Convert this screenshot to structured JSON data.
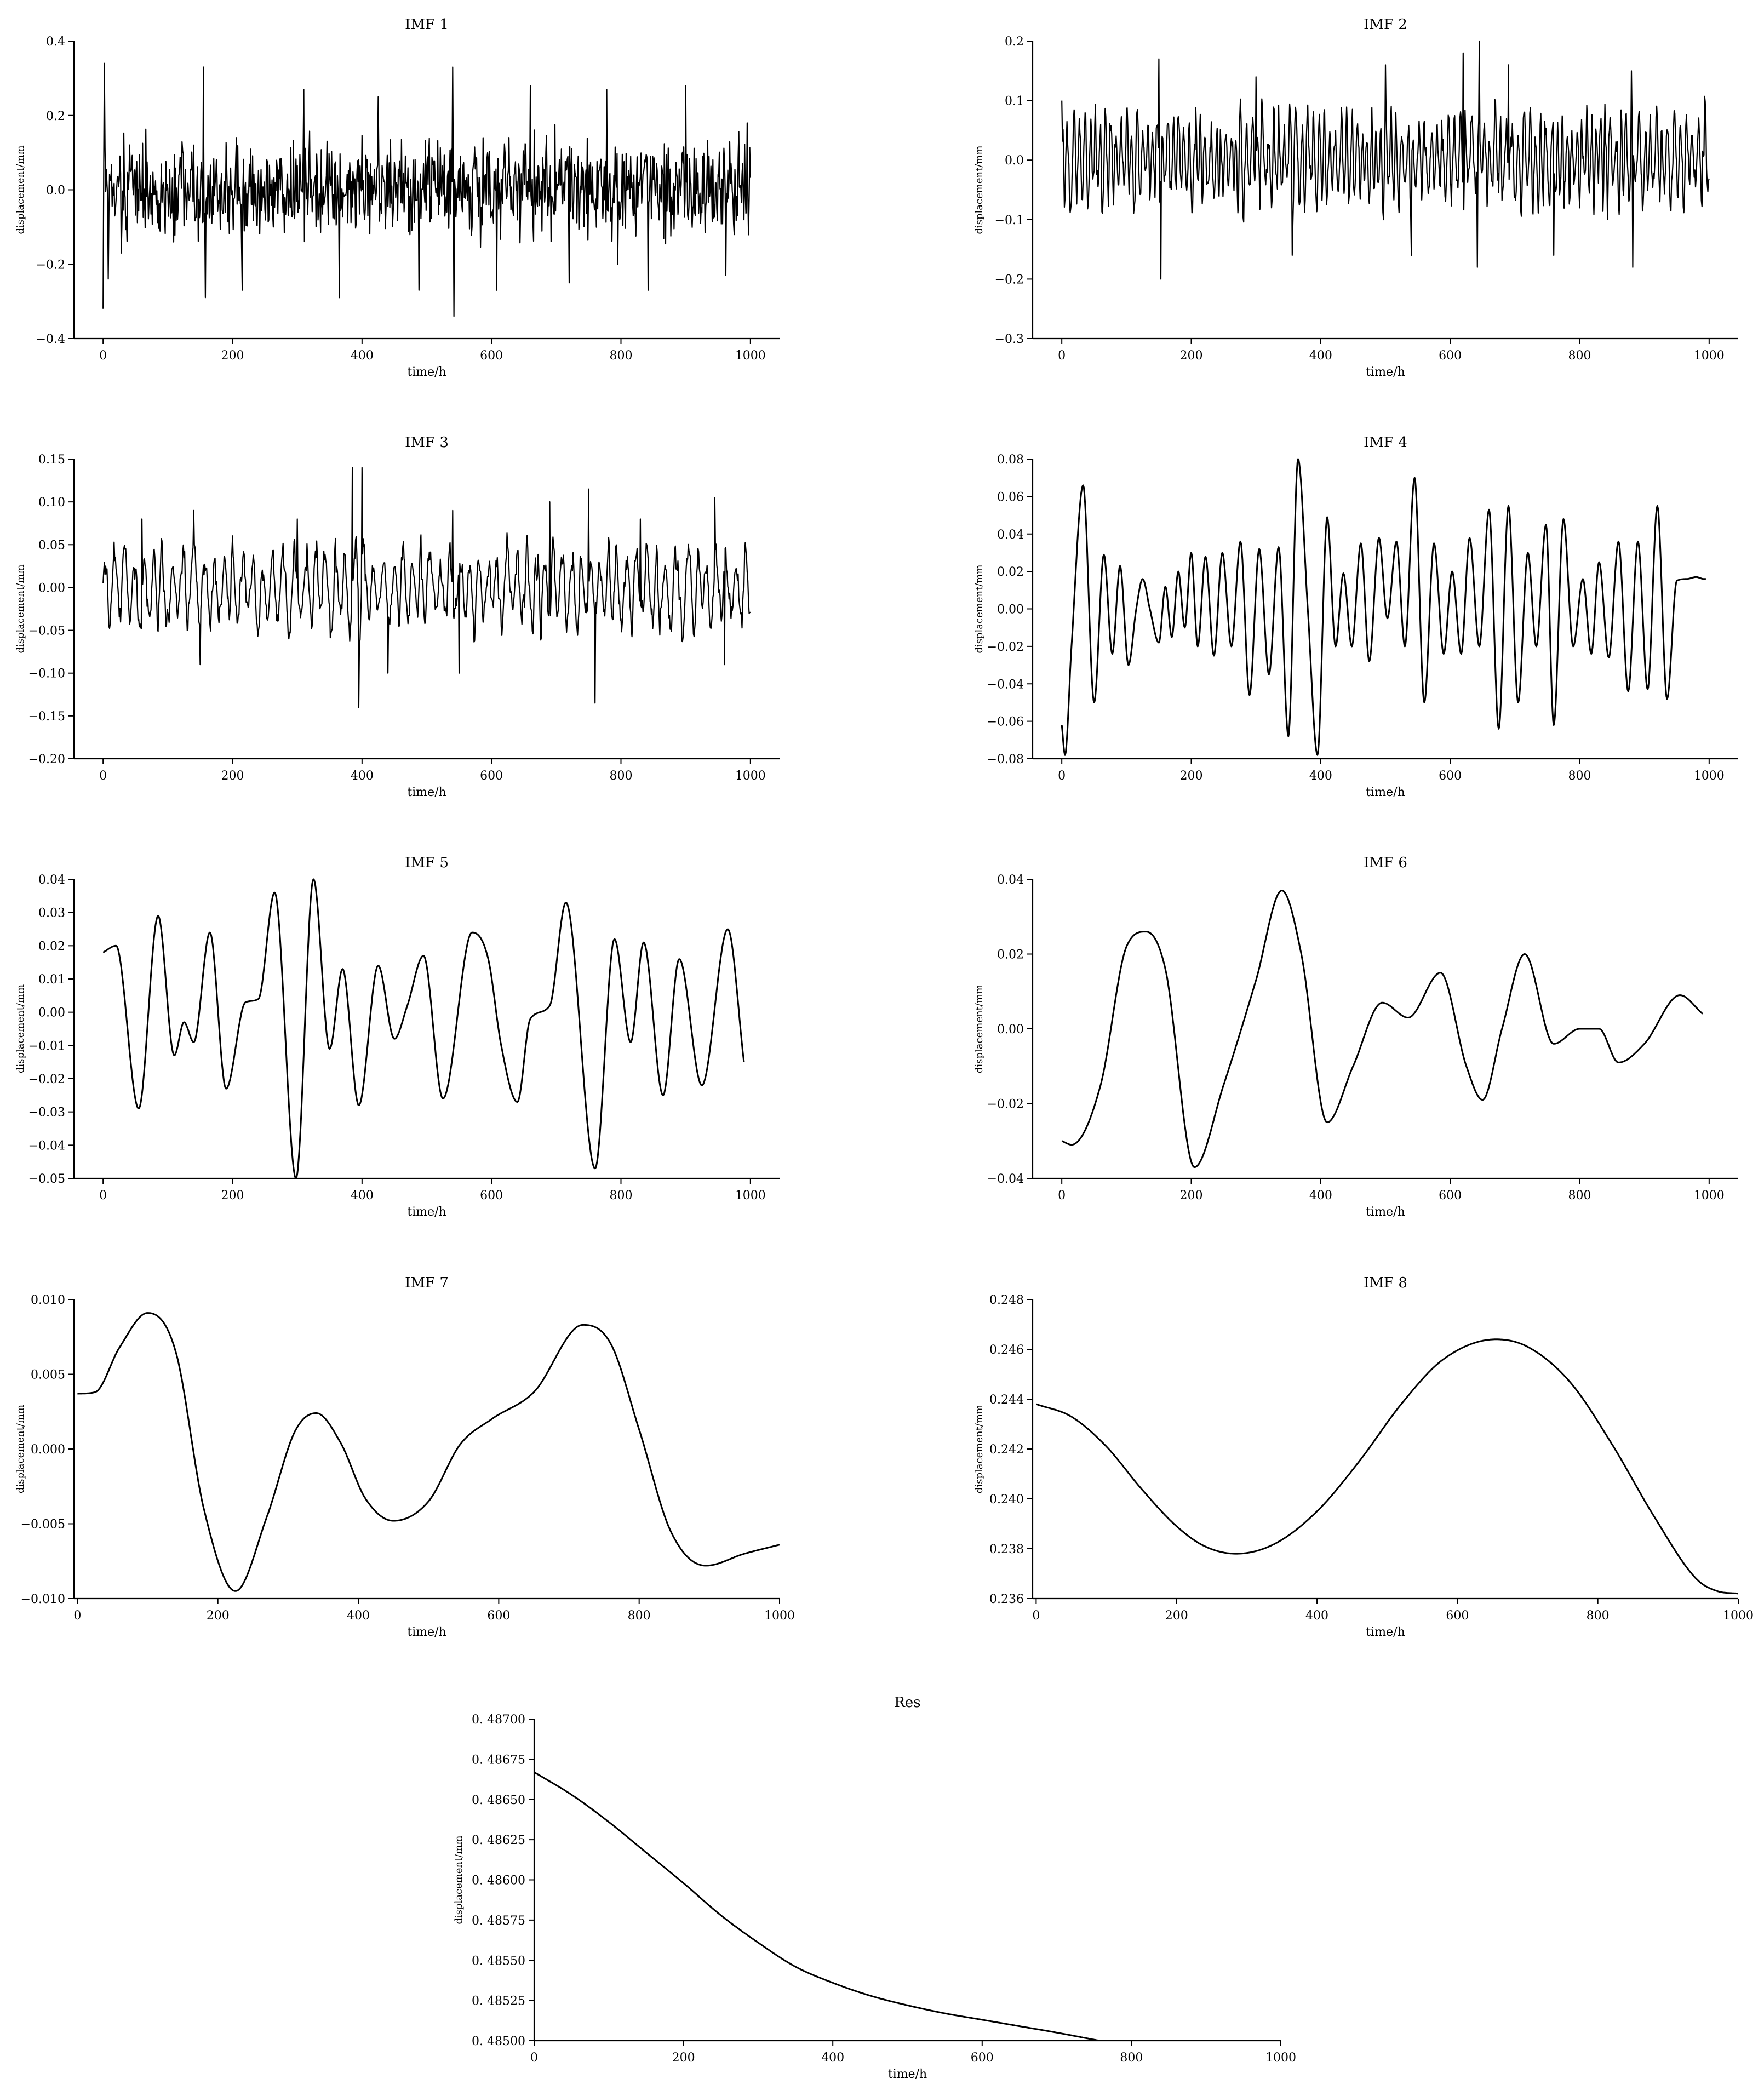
{
  "chart_data": [
    {
      "type": "line",
      "title": "IMF 1",
      "xlabel": "time/h",
      "ylabel": "displacement/mm",
      "xlim": [
        -45,
        1045
      ],
      "ylim": [
        -0.4,
        0.4
      ],
      "xticks": [
        0,
        200,
        400,
        600,
        800,
        1000
      ],
      "yticks": [
        -0.4,
        -0.2,
        0.0,
        0.2,
        0.4
      ],
      "ytick_labels": [
        "−0.4",
        "−0.2",
        "0.0",
        "0.2",
        "0.4"
      ],
      "series": [
        {
          "generator": "noise",
          "x": [
            0,
            1000
          ],
          "amplitude": 0.1,
          "peaks": [
            [
              0,
              -0.32
            ],
            [
              2,
              0.34
            ],
            [
              8,
              -0.24
            ],
            [
              28,
              -0.17
            ],
            [
              155,
              0.33
            ],
            [
              158,
              -0.29
            ],
            [
              215,
              -0.27
            ],
            [
              310,
              0.27
            ],
            [
              365,
              -0.29
            ],
            [
              425,
              0.25
            ],
            [
              488,
              -0.27
            ],
            [
              540,
              0.33
            ],
            [
              542,
              -0.34
            ],
            [
              608,
              -0.27
            ],
            [
              660,
              0.28
            ],
            [
              720,
              -0.25
            ],
            [
              778,
              0.27
            ],
            [
              795,
              -0.2
            ],
            [
              842,
              -0.27
            ],
            [
              900,
              0.28
            ],
            [
              962,
              -0.23
            ],
            [
              995,
              0.18
            ]
          ]
        }
      ]
    },
    {
      "type": "line",
      "title": "IMF 2",
      "xlabel": "time/h",
      "ylabel": "displacement/mm",
      "xlim": [
        -45,
        1045
      ],
      "ylim": [
        -0.3,
        0.2
      ],
      "xticks": [
        0,
        200,
        400,
        600,
        800,
        1000
      ],
      "yticks": [
        -0.3,
        -0.2,
        -0.1,
        0.0,
        0.1,
        0.2
      ],
      "ytick_labels": [
        "−0.3",
        "−0.2",
        "−0.1",
        "0.0",
        "0.1",
        "0.2"
      ],
      "series": [
        {
          "generator": "oscillation",
          "x": [
            0,
            1000
          ],
          "amplitude": 0.075,
          "period": 9,
          "peaks": [
            [
              0,
              0.1
            ],
            [
              150,
              0.17
            ],
            [
              153,
              -0.2
            ],
            [
              300,
              0.14
            ],
            [
              356,
              -0.16
            ],
            [
              500,
              0.16
            ],
            [
              540,
              -0.16
            ],
            [
              620,
              0.18
            ],
            [
              642,
              -0.18
            ],
            [
              645,
              0.2
            ],
            [
              690,
              0.16
            ],
            [
              760,
              -0.16
            ],
            [
              880,
              0.15
            ],
            [
              882,
              -0.18
            ],
            [
              990,
              0.015
            ]
          ]
        }
      ]
    },
    {
      "type": "line",
      "title": "IMF 3",
      "xlabel": "time/h",
      "ylabel": "displacement/mm",
      "xlim": [
        -45,
        1045
      ],
      "ylim": [
        -0.2,
        0.15
      ],
      "xticks": [
        0,
        200,
        400,
        600,
        800,
        1000
      ],
      "yticks": [
        -0.2,
        -0.15,
        -0.1,
        -0.05,
        0.0,
        0.05,
        0.1,
        0.15
      ],
      "ytick_labels": [
        "−0.20",
        "−0.15",
        "−0.10",
        "−0.05",
        "0.00",
        "0.05",
        "0.10",
        "0.15"
      ],
      "series": [
        {
          "generator": "oscillation",
          "x": [
            0,
            1000
          ],
          "amplitude": 0.045,
          "period": 16,
          "peaks": [
            [
              0,
              0.005
            ],
            [
              60,
              0.08
            ],
            [
              140,
              0.09
            ],
            [
              150,
              -0.09
            ],
            [
              300,
              0.08
            ],
            [
              385,
              0.14
            ],
            [
              395,
              -0.14
            ],
            [
              400,
              0.14
            ],
            [
              440,
              -0.1
            ],
            [
              540,
              0.09
            ],
            [
              550,
              -0.1
            ],
            [
              690,
              0.1
            ],
            [
              750,
              0.115
            ],
            [
              760,
              -0.135
            ],
            [
              830,
              0.08
            ],
            [
              945,
              0.105
            ],
            [
              960,
              -0.09
            ],
            [
              990,
              0.0
            ]
          ]
        }
      ]
    },
    {
      "type": "line",
      "title": "IMF 4",
      "xlabel": "time/h",
      "ylabel": "displacement/mm",
      "xlim": [
        -45,
        1045
      ],
      "ylim": [
        -0.08,
        0.08
      ],
      "xticks": [
        0,
        200,
        400,
        600,
        800,
        1000
      ],
      "yticks": [
        -0.08,
        -0.06,
        -0.04,
        -0.02,
        0.0,
        0.02,
        0.04,
        0.06,
        0.08
      ],
      "ytick_labels": [
        "−0.08",
        "−0.06",
        "−0.04",
        "−0.02",
        "0.00",
        "0.02",
        "0.04",
        "0.06",
        "0.08"
      ],
      "series": [
        {
          "generator": "smooth",
          "x": [
            0,
            5,
            15,
            33,
            50,
            65,
            78,
            90,
            103,
            115,
            125,
            136,
            150,
            160,
            170,
            180,
            190,
            200,
            210,
            222,
            235,
            248,
            262,
            276,
            290,
            305,
            320,
            335,
            350,
            365,
            380,
            395,
            410,
            423,
            435,
            448,
            462,
            475,
            490,
            503,
            517,
            530,
            545,
            560,
            575,
            590,
            603,
            617,
            630,
            645,
            660,
            675,
            690,
            705,
            720,
            733,
            748,
            760,
            775,
            790,
            805,
            818,
            830,
            845,
            860,
            875,
            890,
            905,
            920,
            935,
            950,
            965,
            980,
            992,
            995
          ],
          "y": [
            -0.062,
            -0.078,
            -0.02,
            0.066,
            -0.05,
            0.029,
            -0.024,
            0.023,
            -0.03,
            0.0,
            0.016,
            0.0,
            -0.018,
            0.012,
            -0.015,
            0.02,
            -0.01,
            0.03,
            -0.02,
            0.028,
            -0.025,
            0.03,
            -0.02,
            0.036,
            -0.046,
            0.032,
            -0.035,
            0.033,
            -0.068,
            0.08,
            0.0,
            -0.078,
            0.049,
            -0.02,
            0.019,
            -0.02,
            0.035,
            -0.028,
            0.038,
            -0.005,
            0.036,
            -0.02,
            0.07,
            -0.05,
            0.035,
            -0.024,
            0.02,
            -0.024,
            0.038,
            -0.02,
            0.053,
            -0.064,
            0.055,
            -0.05,
            0.03,
            -0.02,
            0.045,
            -0.062,
            0.048,
            -0.02,
            0.016,
            -0.024,
            0.025,
            -0.026,
            0.036,
            -0.044,
            0.036,
            -0.043,
            0.055,
            -0.048,
            0.015,
            0.016,
            0.017,
            0.016,
            0.016
          ]
        }
      ]
    },
    {
      "type": "line",
      "title": "IMF 5",
      "xlabel": "time/h",
      "ylabel": "displacement/mm",
      "xlim": [
        -45,
        1045
      ],
      "ylim": [
        -0.05,
        0.04
      ],
      "xticks": [
        0,
        200,
        400,
        600,
        800,
        1000
      ],
      "yticks": [
        -0.05,
        -0.04,
        -0.03,
        -0.02,
        -0.01,
        0.0,
        0.01,
        0.02,
        0.03,
        0.04
      ],
      "ytick_labels": [
        "−0.05",
        "−0.04",
        "−0.03",
        "−0.02",
        "−0.01",
        "0.00",
        "0.01",
        "0.02",
        "0.03",
        "0.04"
      ],
      "series": [
        {
          "generator": "smooth",
          "x": [
            0,
            20,
            55,
            85,
            110,
            125,
            140,
            165,
            190,
            220,
            240,
            265,
            298,
            325,
            350,
            370,
            395,
            425,
            450,
            470,
            495,
            525,
            570,
            595,
            615,
            640,
            660,
            690,
            715,
            760,
            790,
            815,
            835,
            865,
            890,
            925,
            965,
            990
          ],
          "y": [
            0.018,
            0.02,
            -0.029,
            0.029,
            -0.013,
            -0.003,
            -0.009,
            0.024,
            -0.023,
            0.003,
            0.004,
            0.036,
            -0.05,
            0.04,
            -0.011,
            0.013,
            -0.028,
            0.014,
            -0.008,
            0.002,
            0.017,
            -0.026,
            0.024,
            0.016,
            -0.01,
            -0.027,
            -0.002,
            0.002,
            0.033,
            -0.047,
            0.022,
            -0.009,
            0.021,
            -0.025,
            0.016,
            -0.022,
            0.025,
            -0.015
          ]
        }
      ]
    },
    {
      "type": "line",
      "title": "IMF 6",
      "xlabel": "time/h",
      "ylabel": "displacement/mm",
      "xlim": [
        -45,
        1045
      ],
      "ylim": [
        -0.04,
        0.04
      ],
      "xticks": [
        0,
        200,
        400,
        600,
        800,
        1000
      ],
      "yticks": [
        -0.04,
        -0.02,
        0.0,
        0.02,
        0.04
      ],
      "ytick_labels": [
        "−0.04",
        "−0.02",
        "0.00",
        "0.02",
        "0.04"
      ],
      "series": [
        {
          "generator": "smooth",
          "x": [
            0,
            15,
            60,
            100,
            130,
            160,
            205,
            250,
            300,
            340,
            370,
            410,
            450,
            495,
            535,
            585,
            625,
            650,
            680,
            715,
            760,
            800,
            830,
            860,
            900,
            955,
            990
          ],
          "y": [
            -0.03,
            -0.031,
            -0.015,
            0.022,
            0.026,
            0.016,
            -0.037,
            -0.015,
            0.013,
            0.037,
            0.02,
            -0.025,
            -0.01,
            0.007,
            0.003,
            0.015,
            -0.01,
            -0.019,
            0.0,
            0.02,
            -0.004,
            0.0,
            0.0,
            -0.009,
            -0.004,
            0.009,
            0.004
          ]
        }
      ]
    },
    {
      "type": "line",
      "title": "IMF 7",
      "xlabel": "time/h",
      "ylabel": "displacement/mm",
      "xlim": [
        -5,
        1000
      ],
      "ylim": [
        -0.01,
        0.01
      ],
      "xticks": [
        0,
        200,
        400,
        600,
        800,
        1000
      ],
      "yticks": [
        -0.01,
        -0.005,
        0.0,
        0.005,
        0.01
      ],
      "ytick_labels": [
        "−0.010",
        "−0.005",
        "0.000",
        "0.005",
        "0.010"
      ],
      "series": [
        {
          "generator": "smooth",
          "x": [
            0,
            25,
            60,
            100,
            140,
            180,
            225,
            270,
            310,
            340,
            375,
            410,
            450,
            500,
            545,
            590,
            650,
            720,
            760,
            800,
            845,
            895,
            950,
            1000
          ],
          "y": [
            0.0037,
            0.0038,
            0.0068,
            0.0091,
            0.0065,
            -0.004,
            -0.0095,
            -0.0045,
            0.0012,
            0.0024,
            0.0004,
            -0.0033,
            -0.0048,
            -0.0035,
            0.0003,
            0.002,
            0.0038,
            0.0083,
            0.007,
            0.0013,
            -0.0055,
            -0.0078,
            -0.007,
            -0.0064
          ]
        }
      ]
    },
    {
      "type": "line",
      "title": "IMF 8",
      "xlabel": "time/h",
      "ylabel": "displacement/mm",
      "xlim": [
        -5,
        1000
      ],
      "ylim": [
        0.236,
        0.248
      ],
      "xticks": [
        0,
        200,
        400,
        600,
        800,
        1000
      ],
      "yticks": [
        0.236,
        0.238,
        0.24,
        0.242,
        0.244,
        0.246,
        0.248
      ],
      "ytick_labels": [
        "0.236",
        "0.238",
        "0.240",
        "0.242",
        "0.244",
        "0.246",
        "0.248"
      ],
      "series": [
        {
          "generator": "smooth",
          "x": [
            0,
            50,
            100,
            150,
            200,
            240,
            285,
            340,
            400,
            460,
            520,
            580,
            655,
            700,
            760,
            820,
            880,
            940,
            970,
            1000
          ],
          "y": [
            0.2438,
            0.2433,
            0.2421,
            0.2404,
            0.2389,
            0.2381,
            0.2378,
            0.2382,
            0.2395,
            0.2415,
            0.2438,
            0.2456,
            0.2464,
            0.2461,
            0.2447,
            0.2422,
            0.2393,
            0.2368,
            0.2363,
            0.2362
          ]
        }
      ]
    },
    {
      "type": "line",
      "title": "Res",
      "xlabel": "time/h",
      "ylabel": "displacement/mm",
      "xlim": [
        0,
        1000
      ],
      "ylim": [
        0.485,
        0.487
      ],
      "xticks": [
        0,
        200,
        400,
        600,
        800,
        1000
      ],
      "yticks": [
        0.485,
        0.48525,
        0.4855,
        0.48575,
        0.486,
        0.48625,
        0.4865,
        0.48675,
        0.487
      ],
      "ytick_labels": [
        "0. 48500",
        "0. 48525",
        "0. 48550",
        "0. 48575",
        "0. 48600",
        "0. 48625",
        "0. 48650",
        "0. 48675",
        "0. 48700"
      ],
      "series": [
        {
          "generator": "smooth",
          "x": [
            0,
            50,
            100,
            150,
            200,
            250,
            300,
            350,
            400,
            450,
            500,
            550,
            600,
            650,
            700,
            757
          ],
          "y": [
            0.48667,
            0.48653,
            0.48636,
            0.48617,
            0.48598,
            0.48578,
            0.48561,
            0.48546,
            0.48536,
            0.48528,
            0.48522,
            0.48517,
            0.48513,
            0.48509,
            0.48505,
            0.485
          ]
        }
      ]
    }
  ]
}
